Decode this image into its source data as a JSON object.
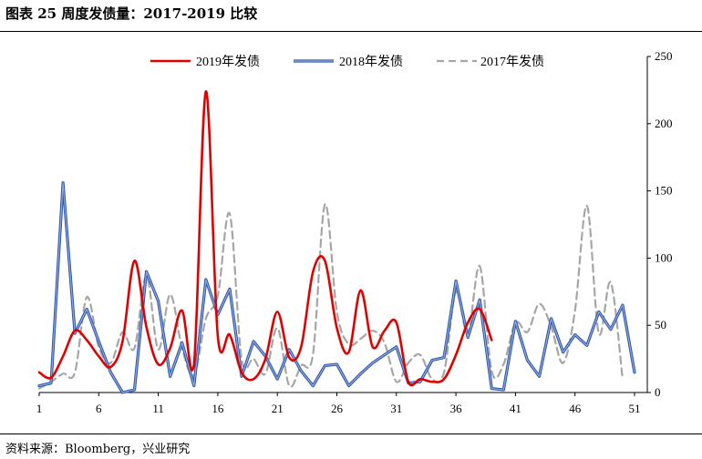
{
  "figure": {
    "title": "图表 25  周度发债量：2017-2019 比较",
    "source": "资料来源：Bloomberg，兴业研究"
  },
  "chart_data": {
    "type": "line",
    "title": "",
    "xlabel": "",
    "ylabel": "",
    "x_ticks": [
      1,
      6,
      11,
      16,
      21,
      26,
      31,
      36,
      41,
      46,
      51
    ],
    "y_ticks": [
      0,
      50,
      100,
      150,
      200,
      250
    ],
    "xlim": [
      1,
      51
    ],
    "ylim": [
      0,
      250
    ],
    "y_axis_side": "right",
    "grid": false,
    "legend_position": "top",
    "series": [
      {
        "name": "2019年发债",
        "color": "#e00000",
        "dash": "solid",
        "x": [
          1,
          2,
          3,
          4,
          5,
          6,
          7,
          8,
          9,
          10,
          11,
          12,
          13,
          14,
          15,
          16,
          17,
          18,
          19,
          20,
          21,
          22,
          23,
          24,
          25,
          26,
          27,
          28,
          29,
          30,
          31,
          32,
          33,
          34,
          35,
          36,
          37,
          38,
          39
        ],
        "values": [
          15,
          11,
          27,
          46,
          39,
          27,
          19,
          38,
          98,
          49,
          21,
          33,
          61,
          21,
          224,
          42,
          43,
          15,
          10,
          25,
          60,
          26,
          34,
          90,
          98,
          48,
          30,
          76,
          34,
          46,
          52,
          8,
          10,
          8,
          10,
          28,
          52,
          62,
          39
        ]
      },
      {
        "name": "2018年发债",
        "color": "#4a72c4",
        "dash": "solid",
        "x": [
          1,
          2,
          3,
          4,
          5,
          6,
          7,
          8,
          9,
          10,
          11,
          12,
          13,
          14,
          15,
          16,
          17,
          18,
          19,
          20,
          21,
          22,
          23,
          24,
          25,
          26,
          27,
          28,
          29,
          30,
          31,
          32,
          33,
          34,
          35,
          36,
          37,
          38,
          39,
          40,
          41,
          42,
          43,
          44,
          45,
          46,
          47,
          48,
          49,
          50,
          51
        ],
        "values": [
          5,
          7,
          156,
          44,
          62,
          38,
          15,
          0,
          2,
          90,
          68,
          12,
          37,
          5,
          84,
          58,
          77,
          12,
          38,
          27,
          10,
          32,
          16,
          5,
          20,
          21,
          5,
          14,
          22,
          28,
          34,
          7,
          8,
          24,
          26,
          83,
          41,
          69,
          3,
          2,
          53,
          24,
          12,
          55,
          30,
          43,
          35,
          60,
          47,
          65,
          15
        ]
      },
      {
        "name": "2017年发债",
        "color": "#a6a6a6",
        "dash": "dashed",
        "x": [
          1,
          2,
          3,
          4,
          5,
          6,
          7,
          8,
          9,
          10,
          11,
          12,
          13,
          14,
          15,
          16,
          17,
          18,
          19,
          20,
          21,
          22,
          23,
          24,
          25,
          26,
          27,
          28,
          29,
          30,
          31,
          32,
          33,
          34,
          35,
          36,
          37,
          38,
          39,
          40,
          41,
          42,
          43,
          44,
          45,
          46,
          47,
          48,
          49,
          50
        ],
        "values": [
          3,
          8,
          14,
          15,
          71,
          34,
          22,
          45,
          33,
          87,
          32,
          73,
          33,
          13,
          55,
          72,
          133,
          25,
          25,
          14,
          48,
          5,
          20,
          29,
          140,
          60,
          36,
          40,
          46,
          37,
          8,
          22,
          28,
          10,
          15,
          75,
          44,
          94,
          16,
          21,
          52,
          45,
          66,
          49,
          22,
          61,
          139,
          44,
          82,
          10
        ]
      }
    ]
  }
}
